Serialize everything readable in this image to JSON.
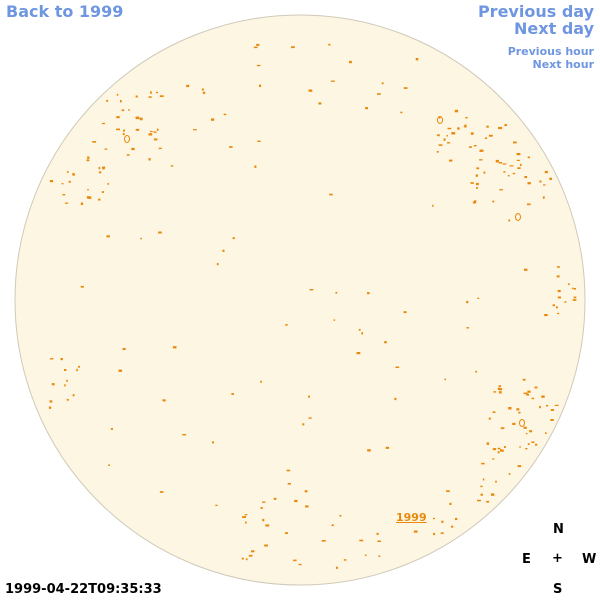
{
  "nav": {
    "back": "Back to 1999",
    "previous_day": "Previous day",
    "next_day": "Next day",
    "previous_hour": "Previous hour",
    "next_hour": "Next hour"
  },
  "compass": {
    "north": "N",
    "east": "E",
    "center": "+",
    "west": "W",
    "south": "S"
  },
  "timestamp": "1999-04-22T09:35:33",
  "region_label": "1999",
  "colors": {
    "disk_fill": "#fdf6e3",
    "disk_stroke": "#cfc9b8",
    "feature": "#e8890c",
    "nav_link": "#6f96e0"
  }
}
